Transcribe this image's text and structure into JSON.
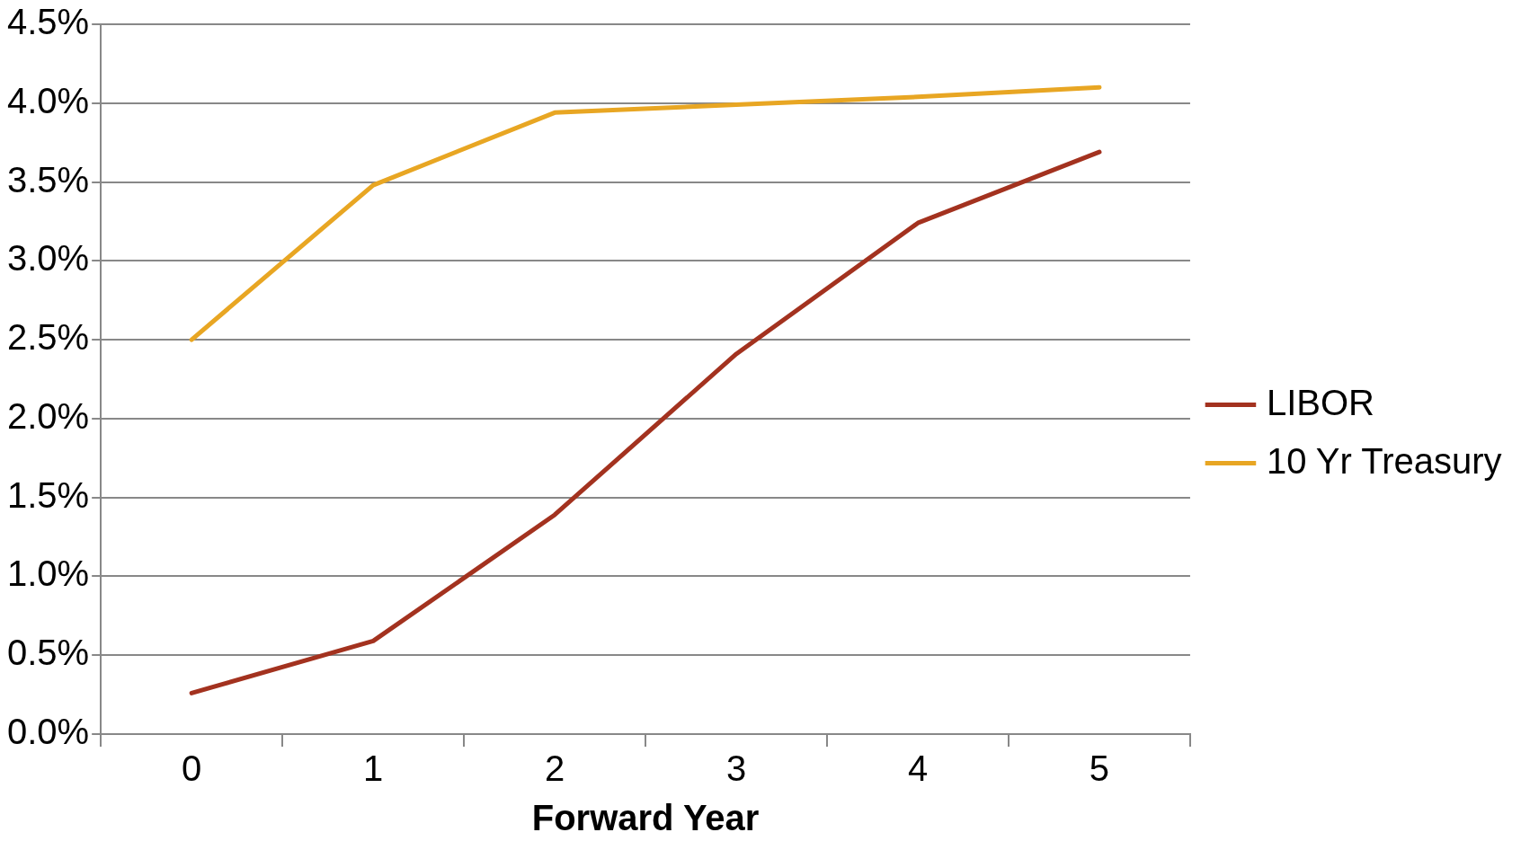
{
  "chart_data": {
    "type": "line",
    "xlabel": "Forward Year",
    "categories": [
      "0",
      "1",
      "2",
      "3",
      "4",
      "5"
    ],
    "series": [
      {
        "name": "LIBOR",
        "color": "#a3321f",
        "values": [
          0.26,
          0.59,
          1.39,
          2.41,
          3.24,
          3.69
        ]
      },
      {
        "name": "10 Yr Treasury",
        "color": "#e8a623",
        "values": [
          2.5,
          3.48,
          3.94,
          3.99,
          4.04,
          4.1
        ]
      }
    ],
    "ylim": [
      0,
      4.5
    ],
    "yticks": [
      {
        "value": 0,
        "label": "0.0%"
      },
      {
        "value": 0.5,
        "label": "0.5%"
      },
      {
        "value": 1,
        "label": "1.0%"
      },
      {
        "value": 1.5,
        "label": "1.5%"
      },
      {
        "value": 2,
        "label": "2.0%"
      },
      {
        "value": 2.5,
        "label": "2.5%"
      },
      {
        "value": 3,
        "label": "3.0%"
      },
      {
        "value": 3.5,
        "label": "3.5%"
      },
      {
        "value": 4,
        "label": "4.0%"
      },
      {
        "value": 4.5,
        "label": "4.5%"
      }
    ],
    "grid": "y",
    "legend": "right",
    "marker": "none",
    "line_style": "solid"
  }
}
